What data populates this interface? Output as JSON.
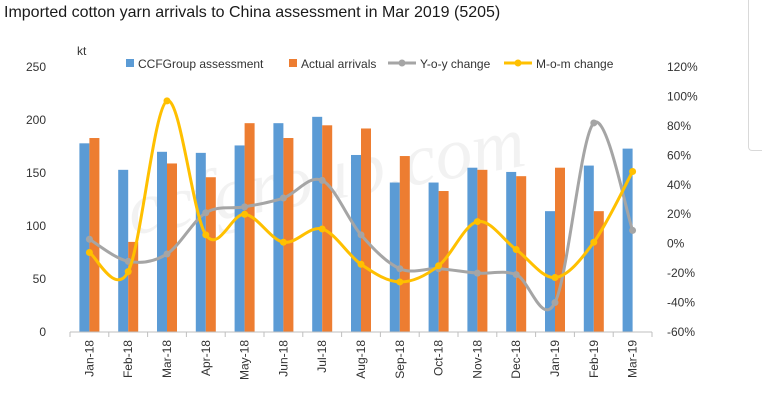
{
  "title": "Imported cotton yarn arrivals to China assessment in Mar 2019 (5205)",
  "chart_data": {
    "type": "bar+line",
    "title": "Imported cotton yarn arrivals to China assessment in Mar 2019 (5205)",
    "unit_label": "kt",
    "categories": [
      "Jan-18",
      "Feb-18",
      "Mar-18",
      "Apr-18",
      "May-18",
      "Jun-18",
      "Jul-18",
      "Aug-18",
      "Sep-18",
      "Oct-18",
      "Nov-18",
      "Dec-18",
      "Jan-19",
      "Feb-19",
      "Mar-19"
    ],
    "bar_series": [
      {
        "name": "CCFGroup assessment",
        "color": "#5b9bd5",
        "values": [
          178,
          153,
          170,
          169,
          176,
          197,
          203,
          167,
          141,
          141,
          155,
          151,
          114,
          157,
          173
        ]
      },
      {
        "name": "Actual arrivals",
        "color": "#ed7d31",
        "values": [
          183,
          85,
          159,
          146,
          197,
          183,
          195,
          192,
          166,
          133,
          153,
          147,
          155,
          114,
          null
        ]
      }
    ],
    "line_series": [
      {
        "name": "Y-o-y change",
        "color": "#a5a5a5",
        "axis": "right",
        "values": [
          3,
          -12,
          -7,
          21,
          25,
          31,
          43,
          6,
          -17,
          -17,
          -20,
          -21,
          -40,
          82,
          9
        ]
      },
      {
        "name": "M-o-m change",
        "color": "#ffc000",
        "axis": "right",
        "values": [
          -6,
          -19,
          97,
          6,
          20,
          1,
          10,
          -14,
          -26,
          -15,
          15,
          -4,
          -23,
          1,
          49
        ]
      }
    ],
    "y_left": {
      "min": 0,
      "max": 250,
      "ticks": [
        "0",
        "50",
        "100",
        "150",
        "200",
        "250"
      ]
    },
    "y_right": {
      "min": -60,
      "max": 120,
      "ticks": [
        "-60%",
        "-40%",
        "-20%",
        "0%",
        "20%",
        "40%",
        "60%",
        "80%",
        "100%",
        "120%"
      ]
    },
    "grid": false,
    "legend_position": "top",
    "watermark": "ccfgroup.com"
  }
}
